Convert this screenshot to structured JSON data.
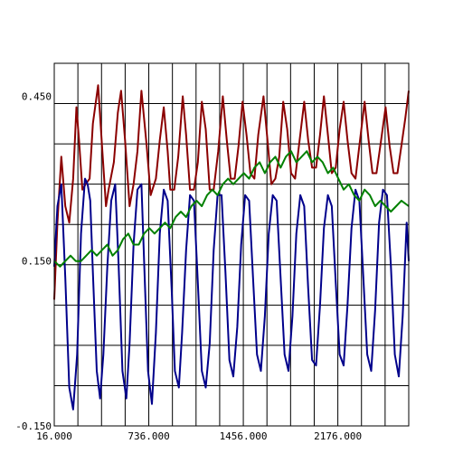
{
  "chart_data": {
    "type": "line",
    "title": "",
    "xlabel": "",
    "ylabel": "",
    "xlim": [
      16,
      2716
    ],
    "ylim": [
      -0.15,
      0.51
    ],
    "grid": true,
    "legend": "none",
    "x_ticks": [
      {
        "value": 16,
        "label": "16.000"
      },
      {
        "value": 736,
        "label": "736.000"
      },
      {
        "value": 1456,
        "label": "1456.000"
      },
      {
        "value": 2176,
        "label": "2176.000"
      }
    ],
    "y_ticks": [
      {
        "value": -0.15,
        "label": "-0.150"
      },
      {
        "value": 0.15,
        "label": "0.150"
      },
      {
        "value": 0.45,
        "label": "0.450"
      }
    ],
    "series": [
      {
        "color": "#8b0000",
        "points": [
          [
            16,
            0.08
          ],
          [
            40,
            0.22
          ],
          [
            70,
            0.34
          ],
          [
            100,
            0.25
          ],
          [
            130,
            0.22
          ],
          [
            160,
            0.3
          ],
          [
            185,
            0.43
          ],
          [
            205,
            0.37
          ],
          [
            230,
            0.28
          ],
          [
            255,
            0.29
          ],
          [
            285,
            0.3
          ],
          [
            310,
            0.4
          ],
          [
            350,
            0.47
          ],
          [
            380,
            0.36
          ],
          [
            410,
            0.25
          ],
          [
            430,
            0.28
          ],
          [
            470,
            0.33
          ],
          [
            500,
            0.42
          ],
          [
            525,
            0.46
          ],
          [
            555,
            0.37
          ],
          [
            590,
            0.25
          ],
          [
            620,
            0.29
          ],
          [
            650,
            0.35
          ],
          [
            680,
            0.46
          ],
          [
            720,
            0.36
          ],
          [
            750,
            0.27
          ],
          [
            790,
            0.3
          ],
          [
            820,
            0.37
          ],
          [
            850,
            0.43
          ],
          [
            880,
            0.35
          ],
          [
            900,
            0.28
          ],
          [
            930,
            0.28
          ],
          [
            960,
            0.34
          ],
          [
            995,
            0.45
          ],
          [
            1020,
            0.38
          ],
          [
            1050,
            0.28
          ],
          [
            1080,
            0.28
          ],
          [
            1110,
            0.33
          ],
          [
            1140,
            0.44
          ],
          [
            1170,
            0.39
          ],
          [
            1200,
            0.28
          ],
          [
            1230,
            0.28
          ],
          [
            1265,
            0.35
          ],
          [
            1300,
            0.45
          ],
          [
            1330,
            0.37
          ],
          [
            1360,
            0.3
          ],
          [
            1390,
            0.3
          ],
          [
            1420,
            0.36
          ],
          [
            1450,
            0.44
          ],
          [
            1480,
            0.38
          ],
          [
            1510,
            0.31
          ],
          [
            1540,
            0.3
          ],
          [
            1570,
            0.38
          ],
          [
            1610,
            0.45
          ],
          [
            1640,
            0.37
          ],
          [
            1670,
            0.29
          ],
          [
            1700,
            0.3
          ],
          [
            1730,
            0.34
          ],
          [
            1760,
            0.44
          ],
          [
            1790,
            0.39
          ],
          [
            1820,
            0.31
          ],
          [
            1850,
            0.3
          ],
          [
            1880,
            0.36
          ],
          [
            1920,
            0.44
          ],
          [
            1950,
            0.37
          ],
          [
            1980,
            0.32
          ],
          [
            2010,
            0.32
          ],
          [
            2040,
            0.38
          ],
          [
            2070,
            0.45
          ],
          [
            2100,
            0.38
          ],
          [
            2130,
            0.31
          ],
          [
            2160,
            0.32
          ],
          [
            2190,
            0.39
          ],
          [
            2220,
            0.44
          ],
          [
            2250,
            0.37
          ],
          [
            2280,
            0.31
          ],
          [
            2310,
            0.3
          ],
          [
            2340,
            0.36
          ],
          [
            2380,
            0.44
          ],
          [
            2410,
            0.37
          ],
          [
            2440,
            0.31
          ],
          [
            2470,
            0.31
          ],
          [
            2500,
            0.36
          ],
          [
            2540,
            0.43
          ],
          [
            2570,
            0.36
          ],
          [
            2600,
            0.31
          ],
          [
            2630,
            0.31
          ],
          [
            2660,
            0.36
          ],
          [
            2690,
            0.41
          ],
          [
            2716,
            0.46
          ]
        ]
      },
      {
        "color": "#00008b",
        "points": [
          [
            16,
            0.14
          ],
          [
            40,
            0.25
          ],
          [
            70,
            0.29
          ],
          [
            100,
            0.12
          ],
          [
            130,
            -0.08
          ],
          [
            160,
            -0.12
          ],
          [
            190,
            -0.02
          ],
          [
            220,
            0.2
          ],
          [
            250,
            0.3
          ],
          [
            270,
            0.29
          ],
          [
            290,
            0.26
          ],
          [
            310,
            0.13
          ],
          [
            340,
            -0.05
          ],
          [
            365,
            -0.1
          ],
          [
            390,
            -0.02
          ],
          [
            420,
            0.14
          ],
          [
            450,
            0.26
          ],
          [
            480,
            0.29
          ],
          [
            505,
            0.15
          ],
          [
            535,
            -0.05
          ],
          [
            565,
            -0.1
          ],
          [
            590,
            0.0
          ],
          [
            620,
            0.18
          ],
          [
            650,
            0.28
          ],
          [
            680,
            0.29
          ],
          [
            705,
            0.12
          ],
          [
            730,
            -0.05
          ],
          [
            760,
            -0.11
          ],
          [
            790,
            0.02
          ],
          [
            820,
            0.2
          ],
          [
            850,
            0.28
          ],
          [
            880,
            0.26
          ],
          [
            910,
            0.1
          ],
          [
            935,
            -0.05
          ],
          [
            965,
            -0.08
          ],
          [
            990,
            0.02
          ],
          [
            1020,
            0.17
          ],
          [
            1050,
            0.27
          ],
          [
            1080,
            0.26
          ],
          [
            1110,
            0.11
          ],
          [
            1140,
            -0.05
          ],
          [
            1170,
            -0.08
          ],
          [
            1200,
            0.0
          ],
          [
            1230,
            0.17
          ],
          [
            1260,
            0.27
          ],
          [
            1290,
            0.27
          ],
          [
            1320,
            0.13
          ],
          [
            1350,
            -0.03
          ],
          [
            1380,
            -0.06
          ],
          [
            1410,
            0.03
          ],
          [
            1440,
            0.18
          ],
          [
            1470,
            0.27
          ],
          [
            1500,
            0.26
          ],
          [
            1530,
            0.12
          ],
          [
            1560,
            -0.02
          ],
          [
            1590,
            -0.05
          ],
          [
            1620,
            0.05
          ],
          [
            1650,
            0.2
          ],
          [
            1680,
            0.27
          ],
          [
            1710,
            0.26
          ],
          [
            1740,
            0.12
          ],
          [
            1770,
            -0.02
          ],
          [
            1800,
            -0.05
          ],
          [
            1830,
            0.05
          ],
          [
            1860,
            0.2
          ],
          [
            1890,
            0.27
          ],
          [
            1920,
            0.25
          ],
          [
            1950,
            0.1
          ],
          [
            1980,
            -0.03
          ],
          [
            2010,
            -0.04
          ],
          [
            2040,
            0.07
          ],
          [
            2070,
            0.21
          ],
          [
            2100,
            0.27
          ],
          [
            2130,
            0.25
          ],
          [
            2160,
            0.11
          ],
          [
            2190,
            -0.02
          ],
          [
            2220,
            -0.04
          ],
          [
            2250,
            0.07
          ],
          [
            2280,
            0.21
          ],
          [
            2310,
            0.28
          ],
          [
            2340,
            0.26
          ],
          [
            2370,
            0.12
          ],
          [
            2400,
            -0.02
          ],
          [
            2430,
            -0.05
          ],
          [
            2460,
            0.06
          ],
          [
            2490,
            0.22
          ],
          [
            2520,
            0.28
          ],
          [
            2550,
            0.27
          ],
          [
            2580,
            0.14
          ],
          [
            2610,
            -0.02
          ],
          [
            2640,
            -0.06
          ],
          [
            2670,
            0.05
          ],
          [
            2700,
            0.22
          ],
          [
            2716,
            0.15
          ]
        ]
      },
      {
        "color": "#008000",
        "points": [
          [
            16,
            0.15
          ],
          [
            60,
            0.14
          ],
          [
            100,
            0.15
          ],
          [
            140,
            0.16
          ],
          [
            180,
            0.15
          ],
          [
            220,
            0.15
          ],
          [
            260,
            0.16
          ],
          [
            300,
            0.17
          ],
          [
            340,
            0.16
          ],
          [
            380,
            0.17
          ],
          [
            420,
            0.18
          ],
          [
            460,
            0.16
          ],
          [
            500,
            0.17
          ],
          [
            540,
            0.19
          ],
          [
            580,
            0.2
          ],
          [
            620,
            0.18
          ],
          [
            660,
            0.18
          ],
          [
            700,
            0.2
          ],
          [
            740,
            0.21
          ],
          [
            780,
            0.2
          ],
          [
            820,
            0.21
          ],
          [
            860,
            0.22
          ],
          [
            900,
            0.21
          ],
          [
            940,
            0.23
          ],
          [
            980,
            0.24
          ],
          [
            1020,
            0.23
          ],
          [
            1060,
            0.25
          ],
          [
            1100,
            0.26
          ],
          [
            1140,
            0.25
          ],
          [
            1180,
            0.27
          ],
          [
            1220,
            0.28
          ],
          [
            1260,
            0.27
          ],
          [
            1300,
            0.29
          ],
          [
            1340,
            0.3
          ],
          [
            1380,
            0.29
          ],
          [
            1420,
            0.3
          ],
          [
            1460,
            0.31
          ],
          [
            1500,
            0.3
          ],
          [
            1540,
            0.32
          ],
          [
            1580,
            0.33
          ],
          [
            1620,
            0.31
          ],
          [
            1660,
            0.33
          ],
          [
            1700,
            0.34
          ],
          [
            1740,
            0.32
          ],
          [
            1780,
            0.34
          ],
          [
            1820,
            0.35
          ],
          [
            1860,
            0.33
          ],
          [
            1900,
            0.34
          ],
          [
            1940,
            0.35
          ],
          [
            1980,
            0.33
          ],
          [
            2020,
            0.34
          ],
          [
            2060,
            0.33
          ],
          [
            2100,
            0.31
          ],
          [
            2140,
            0.32
          ],
          [
            2180,
            0.3
          ],
          [
            2220,
            0.28
          ],
          [
            2260,
            0.29
          ],
          [
            2300,
            0.27
          ],
          [
            2340,
            0.26
          ],
          [
            2380,
            0.28
          ],
          [
            2420,
            0.27
          ],
          [
            2460,
            0.25
          ],
          [
            2500,
            0.26
          ],
          [
            2540,
            0.25
          ],
          [
            2580,
            0.24
          ],
          [
            2620,
            0.25
          ],
          [
            2660,
            0.26
          ],
          [
            2716,
            0.25
          ]
        ]
      }
    ]
  }
}
